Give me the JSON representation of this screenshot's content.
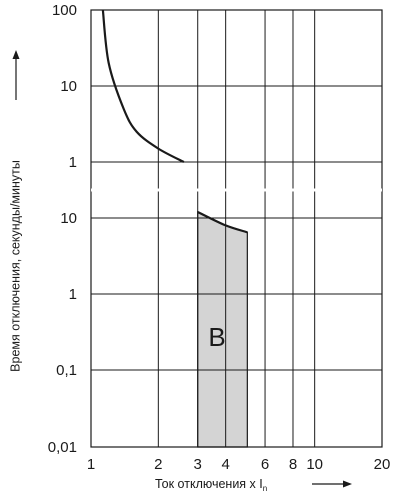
{
  "chart_data": {
    "type": "line",
    "title": "",
    "xlabel": "Ток отключения x I",
    "xlabel_subscript": "n",
    "ylabel": "Время отключения, секунды/минуты",
    "x_scale": "log",
    "xlim": [
      1,
      20
    ],
    "x_ticks": [
      1,
      2,
      3,
      4,
      6,
      8,
      10,
      20
    ],
    "y_scale": "log",
    "y_segments": [
      {
        "unit": "minutes",
        "range": [
          1,
          100
        ],
        "tick_labels": [
          "100",
          "10",
          "1"
        ]
      },
      {
        "unit": "seconds",
        "range": [
          0.01,
          10
        ],
        "tick_labels": [
          "10",
          "1",
          "0,1",
          "0,01"
        ]
      }
    ],
    "grid": true,
    "series": [
      {
        "points": [
          {
            "x": 1.13,
            "y": "100 min"
          },
          {
            "x": 1.2,
            "y": "20 min"
          },
          {
            "x": 1.4,
            "y": "5 min"
          },
          {
            "x": 1.6,
            "y": "2.5 min"
          },
          {
            "x": 2.0,
            "y": "1.5 min"
          },
          {
            "x": 2.6,
            "y": "1 min"
          },
          {
            "x": 3.0,
            "y": "12 s"
          },
          {
            "x": 4.0,
            "y": "8 s"
          },
          {
            "x": 5.0,
            "y": "6.5 s"
          }
        ]
      }
    ],
    "shaded_region": {
      "label": "B",
      "x_range": [
        3,
        5
      ],
      "y_min": "0.01 s"
    },
    "colors": {
      "line": "#1a1a1a",
      "grid": "#1a1a1a",
      "shade": "#d4d4d4"
    }
  }
}
